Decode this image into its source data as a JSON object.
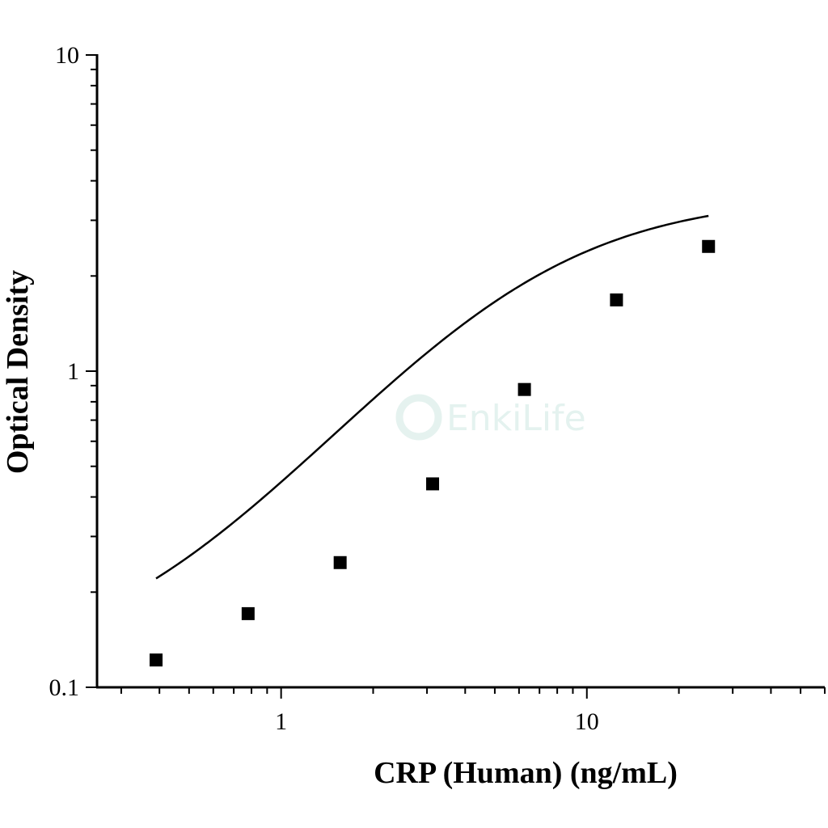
{
  "chart_data": {
    "type": "scatter",
    "xscale": "log",
    "yscale": "log",
    "xlim": [
      0.25,
      60
    ],
    "ylim": [
      0.1,
      10
    ],
    "xlabel": "CRP (Human) (ng/mL)",
    "ylabel": "Optical Density",
    "xticks": [
      {
        "value": 1,
        "label": "1"
      },
      {
        "value": 10,
        "label": "10"
      }
    ],
    "yticks": [
      {
        "value": 0.1,
        "label": "0.1"
      },
      {
        "value": 1,
        "label": "1"
      },
      {
        "value": 10,
        "label": "10"
      }
    ],
    "series": [
      {
        "marker": "square",
        "x": [
          0.39,
          0.78,
          1.56,
          3.13,
          6.25,
          12.5,
          25
        ],
        "y": [
          0.122,
          0.171,
          0.248,
          0.44,
          0.875,
          1.68,
          2.48
        ]
      }
    ],
    "fit_curve": {
      "type": "4PL",
      "A": 0.11,
      "B": 1.25,
      "C": 6.0,
      "D": 3.6
    },
    "grid": false,
    "watermark": "EnkiLife",
    "colors": {
      "marker": "#000000",
      "curve": "#000000",
      "axes": "#000000",
      "watermark": "#cfe8e2"
    }
  }
}
